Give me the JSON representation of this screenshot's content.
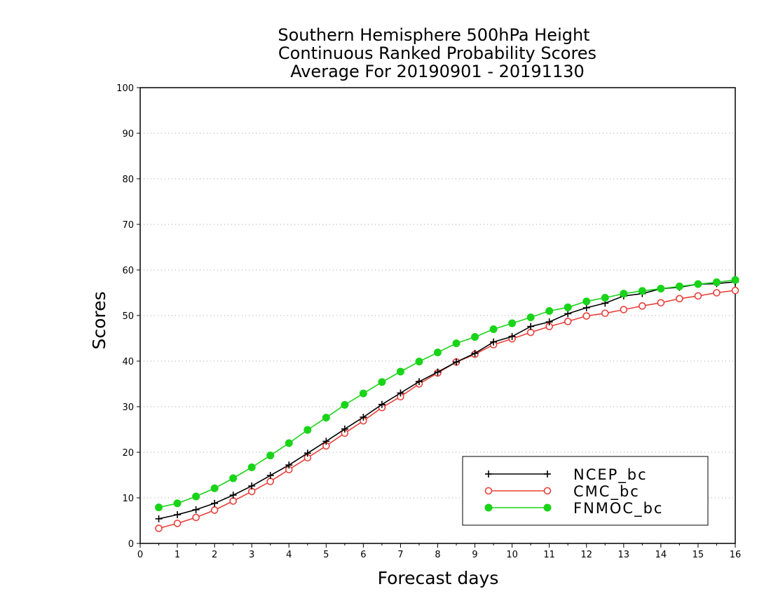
{
  "chart_data": {
    "type": "line",
    "title_lines": [
      "Southern Hemisphere 500hPa Height",
      "Continuous Ranked Probability Scores",
      "Average For 20190901 - 20191130"
    ],
    "xlabel": "Forecast days",
    "ylabel": "Scores",
    "xlim": [
      0,
      16
    ],
    "ylim": [
      0,
      100
    ],
    "xticks": [
      "0",
      "1",
      "2",
      "3",
      "4",
      "5",
      "6",
      "7",
      "8",
      "9",
      "10",
      "11",
      "12",
      "13",
      "14",
      "15",
      "16"
    ],
    "yticks": [
      "0",
      "10",
      "20",
      "30",
      "40",
      "50",
      "60",
      "70",
      "80",
      "90",
      "100"
    ],
    "grid": "horizontal dotted",
    "legend_position": "bottom-right",
    "x": [
      0.5,
      1,
      1.5,
      2,
      2.5,
      3,
      3.5,
      4,
      4.5,
      5,
      5.5,
      6,
      6.5,
      7,
      7.5,
      8,
      8.5,
      9,
      9.5,
      10,
      10.5,
      11,
      11.5,
      12,
      12.5,
      13,
      13.5,
      14,
      14.5,
      15,
      15.5,
      16
    ],
    "series": [
      {
        "name": "NCEP_bc",
        "color": "#000000",
        "marker": "plus",
        "values": [
          5.4,
          6.3,
          7.4,
          8.8,
          10.6,
          12.6,
          14.9,
          17.2,
          19.8,
          22.4,
          25.1,
          27.7,
          30.5,
          33.0,
          35.5,
          37.6,
          39.8,
          41.7,
          44.2,
          45.4,
          47.6,
          48.6,
          50.4,
          51.7,
          52.7,
          54.3,
          54.8,
          55.9,
          56.2,
          56.9,
          57.0,
          57.4
        ]
      },
      {
        "name": "CMC_bc",
        "color": "#e8403a",
        "marker": "open-circle",
        "values": [
          3.3,
          4.4,
          5.7,
          7.3,
          9.3,
          11.4,
          13.6,
          16.2,
          18.8,
          21.4,
          24.2,
          26.9,
          29.8,
          32.2,
          35.0,
          37.4,
          39.8,
          41.5,
          43.6,
          44.9,
          46.3,
          47.6,
          48.7,
          49.9,
          50.5,
          51.3,
          52.1,
          52.8,
          53.7,
          54.3,
          55.0,
          55.5
        ]
      },
      {
        "name": "FNMOC_bc",
        "color": "#19d419",
        "marker": "filled-circle",
        "values": [
          7.9,
          8.8,
          10.3,
          12.1,
          14.3,
          16.7,
          19.3,
          22.0,
          24.9,
          27.6,
          30.4,
          32.9,
          35.4,
          37.7,
          39.9,
          41.9,
          43.9,
          45.3,
          47.0,
          48.3,
          49.6,
          51.0,
          51.8,
          53.1,
          53.9,
          54.8,
          55.4,
          55.9,
          56.4,
          56.9,
          57.3,
          57.8
        ]
      }
    ]
  }
}
